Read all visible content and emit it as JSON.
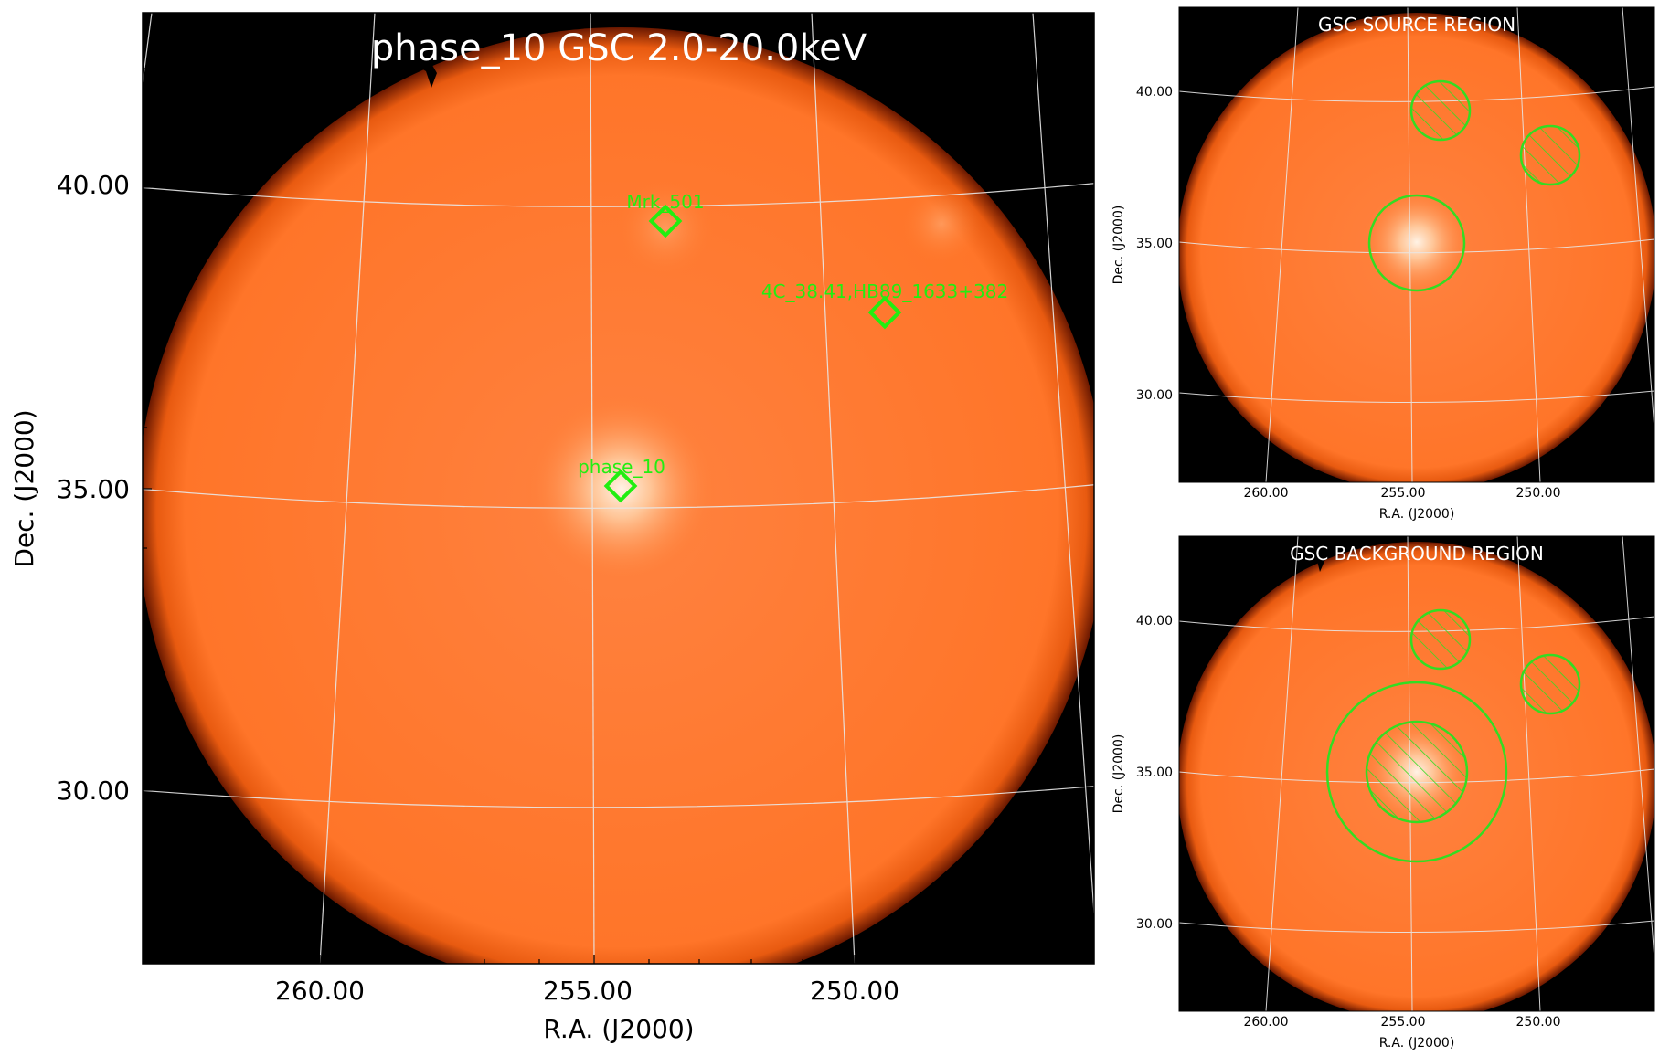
{
  "main_panel": {
    "title": "phase_10 GSC 2.0-20.0keV",
    "xlabel": "R.A. (J2000)",
    "ylabel": "Dec. (J2000)",
    "x_ticks": [
      "260.00",
      "255.00",
      "250.00"
    ],
    "y_ticks": [
      "40.00",
      "35.00",
      "30.00"
    ],
    "sources": [
      {
        "label": "Mrk_501"
      },
      {
        "label": "4C_38.41,HB89_1633+382"
      },
      {
        "label": "phase_10"
      }
    ]
  },
  "source_panel": {
    "title": "GSC SOURCE REGION",
    "xlabel": "R.A. (J2000)",
    "ylabel": "Dec. (J2000)",
    "x_ticks": [
      "260.00",
      "255.00",
      "250.00"
    ],
    "y_ticks": [
      "40.00",
      "35.00",
      "30.00"
    ]
  },
  "background_panel": {
    "title": "GSC BACKGROUND REGION",
    "xlabel": "R.A. (J2000)",
    "ylabel": "Dec. (J2000)",
    "x_ticks": [
      "260.00",
      "255.00",
      "250.00"
    ],
    "y_ticks": [
      "40.00",
      "35.00",
      "30.00"
    ]
  },
  "colors": {
    "image_orange": "#ff7a2a",
    "region_green": "#33dd22",
    "marker_green": "#22ee11",
    "grid": "#e8e8e8",
    "sky_black": "#000000"
  }
}
